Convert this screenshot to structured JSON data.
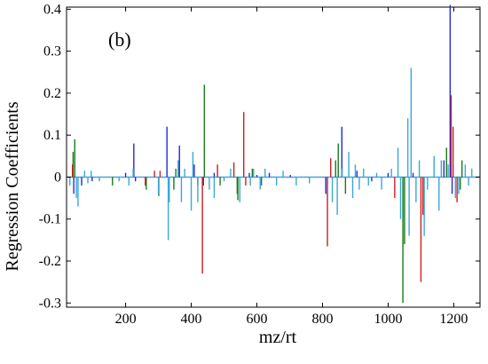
{
  "chart_data": {
    "type": "bar",
    "panel_label": "(b)",
    "title": "",
    "xlabel": "mz/rt",
    "ylabel": "Regression Coefficients",
    "xlim": [
      20,
      1280
    ],
    "ylim": [
      -0.31,
      0.405
    ],
    "x_ticks": [
      200,
      400,
      600,
      800,
      1000,
      1200
    ],
    "y_ticks": [
      -0.3,
      -0.2,
      -0.1,
      0,
      0.1,
      0.2,
      0.3,
      0.4
    ],
    "y_tick_labels": [
      "-0.3",
      "-0.2",
      "-0.1",
      "0",
      "0.1",
      "0.2",
      "0.3",
      "0.4"
    ],
    "grid": false,
    "legend": "none",
    "zero_line_color": "#4aa3d8",
    "colors": {
      "blue": "#1f2bd6",
      "green": "#1a7a1a",
      "red": "#cc1f1f",
      "cyan": "#3aa6dc"
    },
    "series": [
      {
        "color_key": "green",
        "x": [
          40,
          45,
          160,
          263,
          301,
          347,
          353,
          440,
          488,
          540,
          542,
          586,
          614,
          840,
          848,
          870,
          1045,
          1050,
          1178,
          1220,
          1225
        ],
        "y": [
          0.06,
          0.09,
          -0.02,
          -0.03,
          -0.045,
          -0.03,
          0.02,
          0.22,
          -0.02,
          -0.04,
          -0.055,
          0.02,
          -0.02,
          0.04,
          0.08,
          -0.04,
          -0.3,
          -0.16,
          0.07,
          -0.03,
          0.04
        ]
      },
      {
        "color_key": "blue",
        "x": [
          42,
          66,
          98,
          200,
          225,
          230,
          326,
          364,
          409,
          437,
          470,
          577,
          600,
          638,
          702,
          810,
          859,
          905,
          950,
          1000,
          1076,
          1170,
          1189,
          1195
        ],
        "y": [
          -0.04,
          -0.02,
          -0.01,
          0.01,
          0.08,
          -0.01,
          0.12,
          0.075,
          0.03,
          -0.02,
          0.01,
          0.01,
          0.005,
          0.01,
          0.005,
          -0.04,
          0.12,
          0.015,
          -0.01,
          0.01,
          0.01,
          0.04,
          0.41,
          -0.04
        ]
      },
      {
        "color_key": "red",
        "x": [
          38,
          260,
          288,
          305,
          420,
          434,
          480,
          530,
          560,
          566,
          815,
          825,
          1020,
          1100,
          1106,
          1192,
          1198,
          1210
        ],
        "y": [
          0.03,
          -0.02,
          0.015,
          0.015,
          -0.02,
          -0.23,
          0.03,
          0.035,
          0.155,
          -0.02,
          -0.165,
          0.045,
          -0.05,
          -0.25,
          -0.09,
          0.195,
          0.12,
          -0.06
        ]
      },
      {
        "color_key": "cyan",
        "x": [
          30,
          50,
          55,
          75,
          85,
          95,
          120,
          180,
          210,
          223,
          300,
          330,
          333,
          360,
          370,
          380,
          400,
          405,
          420,
          455,
          470,
          500,
          520,
          548,
          580,
          590,
          610,
          625,
          660,
          680,
          720,
          760,
          830,
          845,
          860,
          880,
          892,
          900,
          912,
          925,
          940,
          965,
          980,
          1010,
          1030,
          1038,
          1060,
          1064,
          1070,
          1085,
          1095,
          1110,
          1120,
          1140,
          1155,
          1162,
          1183,
          1205,
          1215,
          1235,
          1245,
          1255
        ],
        "y": [
          -0.02,
          -0.05,
          -0.07,
          0.015,
          -0.015,
          0.015,
          -0.01,
          -0.01,
          -0.02,
          0.02,
          -0.04,
          -0.15,
          -0.06,
          0.04,
          -0.06,
          0.02,
          -0.08,
          0.06,
          -0.06,
          -0.03,
          -0.05,
          -0.01,
          0.02,
          -0.06,
          -0.02,
          0.02,
          -0.03,
          0.02,
          -0.02,
          0.015,
          -0.02,
          -0.015,
          -0.06,
          -0.09,
          0.02,
          0.06,
          -0.05,
          0.03,
          -0.03,
          0.02,
          -0.02,
          0.01,
          -0.03,
          0.02,
          0.07,
          -0.1,
          0.14,
          -0.14,
          0.26,
          -0.06,
          0.04,
          -0.14,
          -0.03,
          0.05,
          -0.08,
          0.04,
          0.03,
          -0.05,
          -0.04,
          0.03,
          -0.02,
          0.02
        ]
      }
    ]
  }
}
